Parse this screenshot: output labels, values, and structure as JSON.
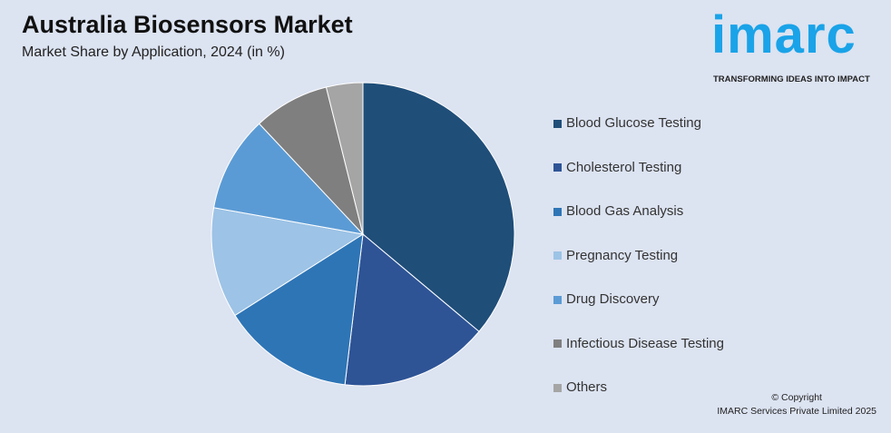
{
  "header": {
    "title": "Australia Biosensors Market",
    "subtitle": "Market Share by Application, 2024 (in %)"
  },
  "logo": {
    "text": "imarc",
    "tagline": "TRANSFORMING IDEAS INTO IMPACT"
  },
  "chart_data": {
    "type": "pie",
    "title": "Australia Biosensors Market",
    "subtitle": "Market Share by Application, 2024 (in %)",
    "legend_position": "right",
    "categories": [
      "Blood Glucose Testing",
      "Cholesterol Testing",
      "Blood Gas Analysis",
      "Pregnancy Testing",
      "Drug Discovery",
      "Infectious Disease Testing",
      "Others"
    ],
    "values": [
      36.1,
      15.8,
      14.1,
      11.8,
      10.2,
      8.1,
      3.9
    ],
    "colors": [
      "#1f4e79",
      "#2e5496",
      "#2e75b6",
      "#9dc3e6",
      "#5b9bd5",
      "#7f7f7f",
      "#a5a5a5"
    ]
  },
  "footer": {
    "copyright": "© Copyright",
    "company": "IMARC Services Private Limited 2025"
  }
}
